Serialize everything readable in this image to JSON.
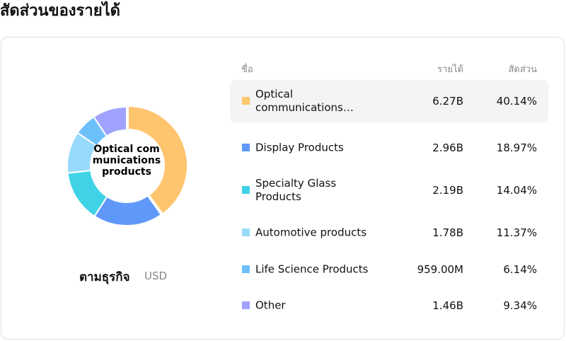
{
  "title": "สัดส่วนของรายได้",
  "center_label": "Optical communications products",
  "group_by": "ตามธุรกิจ",
  "currency": "USD",
  "headers": {
    "name": "ชื่อ",
    "revenue": "รายได้",
    "share": "สัดส่วน"
  },
  "chart_data": {
    "type": "pie",
    "donut": true,
    "categories": [
      "Optical communications products",
      "Display Products",
      "Specialty Glass Products",
      "Automotive products",
      "Life Science Products",
      "Other"
    ],
    "values": [
      40.14,
      18.97,
      14.04,
      11.37,
      6.14,
      9.34
    ],
    "colors": [
      "#ffc46e",
      "#6098fa",
      "#40d2e6",
      "#98dafc",
      "#6ec0fa",
      "#a0a3fd"
    ]
  },
  "rows": [
    {
      "name": "Optical communications…",
      "revenue": "6.27B",
      "share": "40.14%",
      "color": "#ffc46e",
      "highlight": true
    },
    {
      "name": "Display Products",
      "revenue": "2.96B",
      "share": "18.97%",
      "color": "#6098fa"
    },
    {
      "name": "Specialty Glass Products",
      "revenue": "2.19B",
      "share": "14.04%",
      "color": "#40d2e6"
    },
    {
      "name": "Automotive products",
      "revenue": "1.78B",
      "share": "11.37%",
      "color": "#98dafc"
    },
    {
      "name": "Life Science Products",
      "revenue": "959.00M",
      "share": "6.14%",
      "color": "#6ec0fa"
    },
    {
      "name": "Other",
      "revenue": "1.46B",
      "share": "9.34%",
      "color": "#a0a3fd"
    }
  ]
}
